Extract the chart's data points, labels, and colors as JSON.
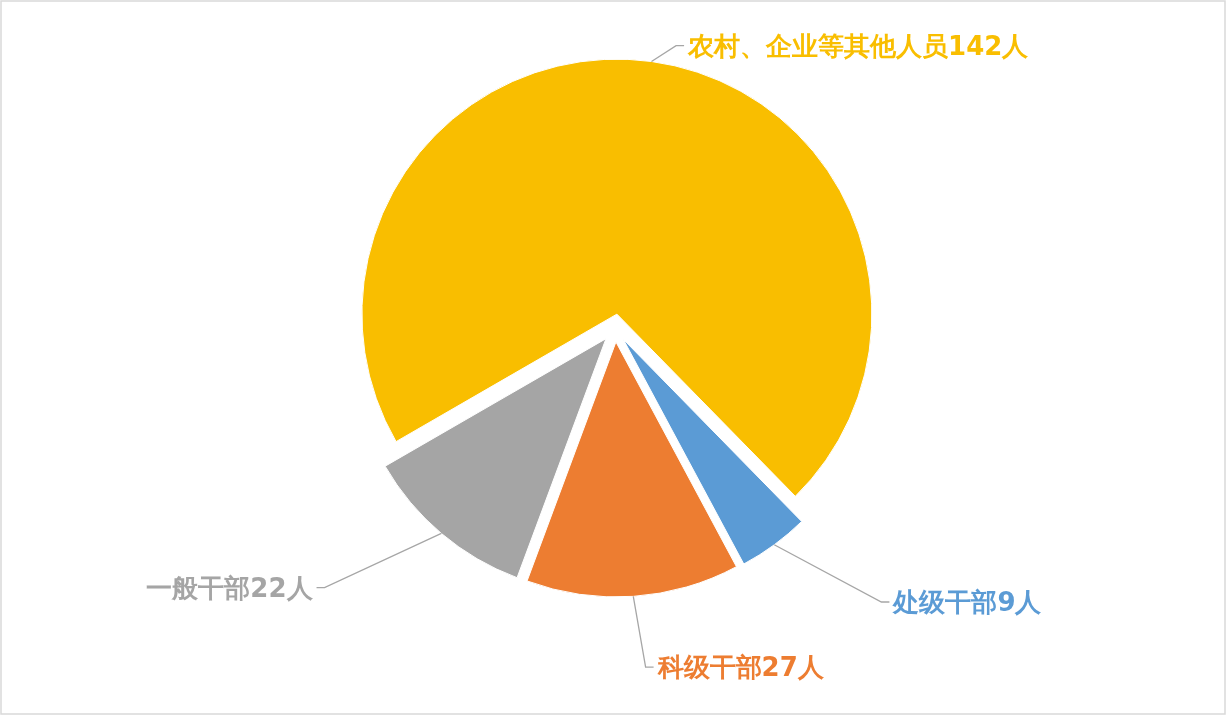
{
  "chart_data": {
    "type": "pie",
    "categories": [
      "农村、企业等其他人员",
      "处级干部",
      "科级干部",
      "一般干部"
    ],
    "values": [
      142,
      9,
      27,
      22
    ],
    "colors": [
      "#f9be00",
      "#5b9bd5",
      "#ed7d31",
      "#a5a5a5"
    ],
    "value_labels": [
      "142人",
      "9人",
      "27人",
      "22人"
    ]
  }
}
